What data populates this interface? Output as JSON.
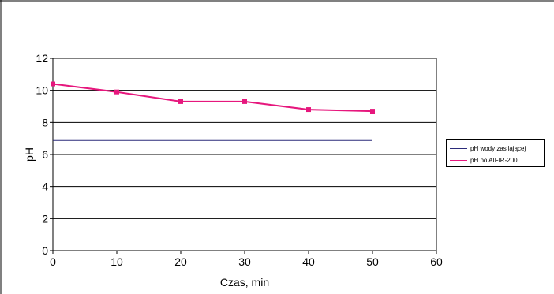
{
  "chart_data": {
    "type": "line",
    "xlabel": "Czas, min",
    "ylabel": "pH",
    "xlim": [
      0,
      60
    ],
    "ylim": [
      0,
      12
    ],
    "xticks": [
      0,
      10,
      20,
      30,
      40,
      50,
      60
    ],
    "yticks": [
      0,
      2,
      4,
      6,
      8,
      10,
      12
    ],
    "grid": "horizontal",
    "legend_position": "right",
    "series": [
      {
        "name": "pH wody zasilającej",
        "color": "#2b2b7a",
        "marker": "none",
        "x": [
          0,
          50
        ],
        "y": [
          6.9,
          6.9
        ]
      },
      {
        "name": "pH po AIFIR-200",
        "color": "#e6177d",
        "marker": "square",
        "x": [
          0,
          10,
          20,
          30,
          40,
          50
        ],
        "y": [
          10.4,
          9.9,
          9.3,
          9.3,
          8.8,
          8.7
        ]
      }
    ]
  }
}
